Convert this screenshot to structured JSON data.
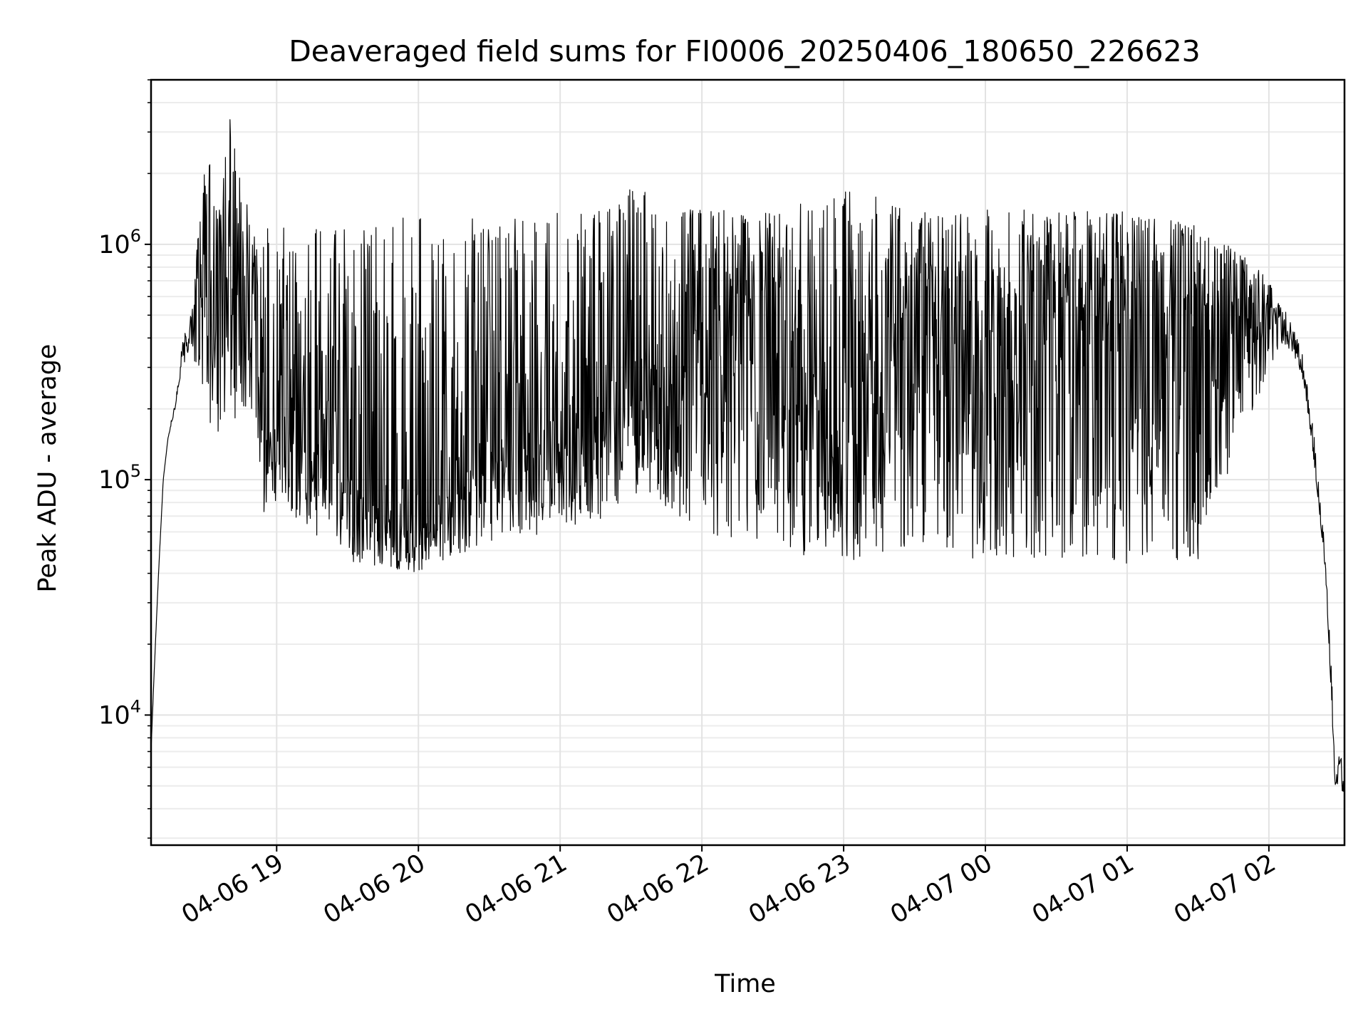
{
  "chart_data": {
    "type": "line",
    "title": "Deaveraged field sums for FI0006_20250406_180650_226623",
    "xlabel": "Time",
    "ylabel": "Peak ADU - average",
    "y_scale": "log",
    "ylim": [
      2800,
      5000000
    ],
    "xlim": [
      "2025-04-06 18:06:50",
      "2025-04-07 02:32:00"
    ],
    "grid": true,
    "legend": "none",
    "line_color": "#000000",
    "x_ticks": [
      {
        "label": "04-06 19",
        "time": "2025-04-06 19:00"
      },
      {
        "label": "04-06 20",
        "time": "2025-04-06 20:00"
      },
      {
        "label": "04-06 21",
        "time": "2025-04-06 21:00"
      },
      {
        "label": "04-06 22",
        "time": "2025-04-06 22:00"
      },
      {
        "label": "04-06 23",
        "time": "2025-04-06 23:00"
      },
      {
        "label": "04-07 00",
        "time": "2025-04-07 00:00"
      },
      {
        "label": "04-07 01",
        "time": "2025-04-07 01:00"
      },
      {
        "label": "04-07 02",
        "time": "2025-04-07 02:00"
      }
    ],
    "y_ticks": [
      {
        "base": "10",
        "exp": "4",
        "value": 10000
      },
      {
        "base": "10",
        "exp": "5",
        "value": 100000
      },
      {
        "base": "10",
        "exp": "6",
        "value": 1000000
      }
    ],
    "series": [
      {
        "x": [
          "2025-04-06 18:06:50",
          "2025-04-06 18:08",
          "2025-04-06 18:10",
          "2025-04-06 18:12",
          "2025-04-06 18:14",
          "2025-04-06 18:17",
          "2025-04-06 18:20",
          "2025-04-06 18:23",
          "2025-04-06 18:26",
          "2025-04-06 18:30",
          "2025-04-06 18:33",
          "2025-04-06 18:36",
          "2025-04-06 18:40",
          "2025-04-06 18:44",
          "2025-04-06 18:48",
          "2025-04-06 18:52",
          "2025-04-06 18:55",
          "2025-04-06 19:00",
          "2025-04-06 19:30",
          "2025-04-06 20:00",
          "2025-04-06 20:30",
          "2025-04-06 21:00",
          "2025-04-06 21:20",
          "2025-04-06 21:30",
          "2025-04-06 22:00",
          "2025-04-06 22:30",
          "2025-04-06 23:00",
          "2025-04-06 23:30",
          "2025-04-07 00:00",
          "2025-04-07 00:30",
          "2025-04-07 01:00",
          "2025-04-07 01:30",
          "2025-04-07 01:50",
          "2025-04-07 02:00",
          "2025-04-07 02:06",
          "2025-04-07 02:10",
          "2025-04-07 02:14",
          "2025-04-07 02:18",
          "2025-04-07 02:21",
          "2025-04-07 02:24",
          "2025-04-07 02:26",
          "2025-04-07 02:28",
          "2025-04-07 02:30",
          "2025-04-07 02:32"
        ],
        "y": [
          7000,
          14000,
          40000,
          100000,
          150000,
          200000,
          350000,
          400000,
          600000,
          800000,
          700000,
          900000,
          1000000,
          600000,
          800000,
          500000,
          150000,
          200000,
          100000,
          60000,
          150000,
          150000,
          200000,
          250000,
          500000,
          500000,
          150000,
          450000,
          500000,
          500000,
          500000,
          500000,
          500000,
          500000,
          450000,
          400000,
          300000,
          150000,
          80000,
          40000,
          15000,
          6000,
          5500,
          5200
        ],
        "y_low": [
          7000,
          14000,
          40000,
          100000,
          150000,
          200000,
          300000,
          350000,
          300000,
          200000,
          150000,
          150000,
          150000,
          200000,
          200000,
          150000,
          60000,
          80000,
          45000,
          40000,
          55000,
          60000,
          70000,
          90000,
          60000,
          50000,
          45000,
          50000,
          45000,
          45000,
          40000,
          45000,
          150000,
          300000,
          380000,
          350000,
          280000,
          150000,
          80000,
          40000,
          15000,
          5000,
          4800,
          4700
        ],
        "y_high": [
          7000,
          14000,
          40000,
          100000,
          150000,
          220000,
          400000,
          450000,
          900000,
          2500000,
          2300000,
          1500000,
          3500000,
          2300000,
          1400000,
          1100000,
          1200000,
          1200000,
          1300000,
          1300000,
          1300000,
          1400000,
          1400000,
          1800000,
          1400000,
          1400000,
          1800000,
          1400000,
          1400000,
          1400000,
          1400000,
          1200000,
          900000,
          700000,
          550000,
          450000,
          350000,
          200000,
          100000,
          50000,
          20000,
          9000,
          7000,
          6000
        ]
      }
    ]
  }
}
